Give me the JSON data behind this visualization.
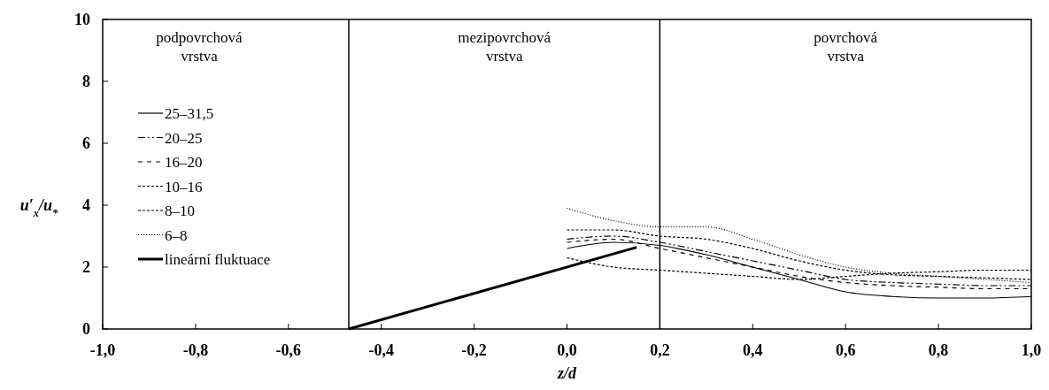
{
  "chart_data": {
    "type": "line",
    "xlabel": "z/d",
    "ylabel": "u′$_{x}$/u$_{*}$",
    "xlim": [
      -1,
      1
    ],
    "xticks": [
      {
        "value": -1,
        "label": "-1,0"
      },
      {
        "value": -0.8,
        "label": "-0,8"
      },
      {
        "value": -0.6,
        "label": "-0,6"
      },
      {
        "value": -0.4,
        "label": "-0,4"
      },
      {
        "value": -0.2,
        "label": "-0,2"
      },
      {
        "value": 0,
        "label": "0,0"
      },
      {
        "value": 0.2,
        "label": "0,2"
      },
      {
        "value": 0.4,
        "label": "0,4"
      },
      {
        "value": 0.6,
        "label": "0,6"
      },
      {
        "value": 0.8,
        "label": "0,8"
      },
      {
        "value": 1,
        "label": "1,0"
      }
    ],
    "ylim": [
      0,
      10
    ],
    "yticks": [
      0,
      2,
      4,
      6,
      8,
      10
    ],
    "grid": false,
    "legend": "left",
    "ref_lines": [
      {
        "axis": "x",
        "value": -0.47,
        "color": "#000000"
      },
      {
        "axis": "x",
        "value": 0.2,
        "color": "#000000"
      }
    ],
    "annotations": [
      "podpovrchová vrstva",
      "mezipovrchová vrstva",
      "povrchová vrstva"
    ],
    "series": [
      {
        "name": "25–31,5",
        "color": "#000000",
        "line_style": "solid",
        "x": [
          0,
          0.1,
          0.2,
          0.3,
          0.4,
          0.5,
          0.6,
          0.7,
          0.8,
          0.9,
          1
        ],
        "values": [
          2.6,
          2.8,
          2.7,
          2.4,
          2.0,
          1.6,
          1.2,
          1.05,
          1.0,
          1.0,
          1.05
        ]
      },
      {
        "name": "20–25",
        "color": "#000000",
        "line_style": "dashed",
        "x": [
          0,
          0.1,
          0.2,
          0.3,
          0.4,
          0.5,
          0.6,
          0.7,
          0.8,
          0.9,
          1
        ],
        "values": [
          2.9,
          3.0,
          2.8,
          2.5,
          2.2,
          1.9,
          1.6,
          1.5,
          1.45,
          1.4,
          1.4
        ]
      },
      {
        "name": "16–20",
        "color": "#000000",
        "line_style": "dashed",
        "x": [
          0,
          0.1,
          0.2,
          0.3,
          0.4,
          0.5,
          0.6,
          0.7,
          0.8,
          0.9,
          1
        ],
        "values": [
          2.8,
          2.9,
          2.6,
          2.3,
          2.0,
          1.7,
          1.5,
          1.4,
          1.35,
          1.3,
          1.3
        ]
      },
      {
        "name": "10–16",
        "color": "#000000",
        "line_style": "dashed",
        "x": [
          0,
          0.1,
          0.2,
          0.3,
          0.4,
          0.5,
          0.6,
          0.7,
          0.8,
          0.9,
          1
        ],
        "values": [
          2.3,
          2.0,
          1.9,
          1.8,
          1.7,
          1.6,
          1.7,
          1.8,
          1.85,
          1.9,
          1.9
        ]
      },
      {
        "name": "8–10",
        "color": "#000000",
        "line_style": "dashed",
        "x": [
          0,
          0.1,
          0.2,
          0.3,
          0.4,
          0.5,
          0.6,
          0.7,
          0.8,
          0.9,
          1
        ],
        "values": [
          3.2,
          3.2,
          3.0,
          2.9,
          2.6,
          2.2,
          1.9,
          1.75,
          1.7,
          1.65,
          1.6
        ]
      },
      {
        "name": "6–8",
        "color": "#000000",
        "line_style": "dotted",
        "x": [
          0,
          0.1,
          0.2,
          0.3,
          0.4,
          0.5,
          0.6,
          0.7,
          0.8,
          0.9,
          1
        ],
        "values": [
          3.9,
          3.5,
          3.3,
          3.3,
          2.9,
          2.4,
          2.0,
          1.8,
          1.7,
          1.6,
          1.5
        ]
      },
      {
        "name": "lineární fluktuace",
        "color": "#000000",
        "line_style": "solid",
        "x": [
          -0.47,
          0.15
        ],
        "values": [
          0,
          2.64
        ]
      }
    ]
  }
}
